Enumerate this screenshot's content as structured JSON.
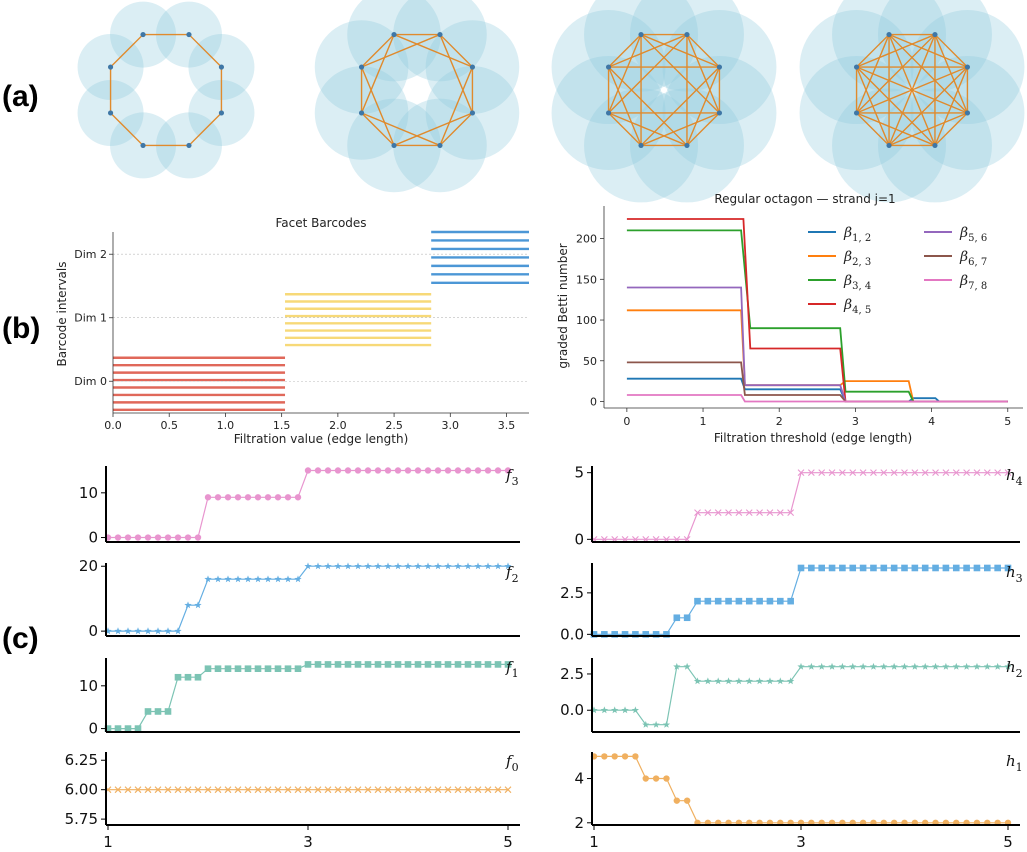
{
  "panel_labels": [
    "(a)",
    "(b)",
    "(c)"
  ],
  "colors": {
    "ball": "#8ec9dc",
    "edge": "#e08a2c",
    "node": "#3f77a6",
    "dim0": "#e0685a",
    "dim1": "#f7d978",
    "dim2": "#4c97d6",
    "f3": "#e895cf",
    "f2": "#64aee2",
    "f1": "#7cc4b4",
    "f0": "#f0b060",
    "h4": "#e895cf",
    "h3": "#64aee2",
    "h2": "#7cc4b4",
    "h1": "#f0b060"
  },
  "chart_data": [
    {
      "id": "octagon-complexes",
      "type": "diagram",
      "n_vertices": 8,
      "complexes": [
        {
          "radius_ratio": 0.55,
          "edge_skips": [
            1
          ]
        },
        {
          "radius_ratio": 0.78,
          "edge_skips": [
            1,
            2
          ]
        },
        {
          "radius_ratio": 0.95,
          "edge_skips": [
            1,
            2,
            3
          ]
        },
        {
          "radius_ratio": 0.95,
          "edge_skips": [
            1,
            2,
            3,
            4
          ]
        }
      ]
    },
    {
      "id": "facet-barcodes",
      "type": "barcode",
      "title": "Facet Barcodes",
      "xlabel": "Filtration value (edge length)",
      "ylabel": "Barcode intervals",
      "xlim": [
        0,
        3.7
      ],
      "xticks": [
        "0.0",
        "0.5",
        "1.0",
        "1.5",
        "2.0",
        "2.5",
        "3.0",
        "3.5"
      ],
      "ylim": [
        -0.5,
        2.35
      ],
      "dims": [
        {
          "label": "Dim 0",
          "start": 0.0,
          "end": 1.53,
          "count": 8,
          "y_low": -0.45,
          "y_high": 0.37
        },
        {
          "label": "Dim 1",
          "start": 1.53,
          "end": 2.83,
          "count": 8,
          "y_low": 0.57,
          "y_high": 1.37
        },
        {
          "label": "Dim 2",
          "start": 2.83,
          "end": 3.7,
          "count": 7,
          "y_low": 1.55,
          "y_high": 2.35
        }
      ]
    },
    {
      "id": "graded-betti",
      "type": "line",
      "title": "Regular octagon — strand j=1",
      "xlabel": "Filtration threshold (edge length)",
      "ylabel": "graded Betti number",
      "xlim": [
        -0.3,
        5.2
      ],
      "ylim": [
        -8,
        240
      ],
      "xticks": [
        0,
        1,
        2,
        3,
        4,
        5
      ],
      "yticks": [
        0,
        50,
        100,
        150,
        200
      ],
      "series": [
        {
          "name": "β",
          "sub": "1, 2",
          "color": "#1f77b4",
          "x": [
            0,
            1.5,
            1.55,
            1.62,
            2.8,
            2.87,
            3.7,
            3.76,
            4.05,
            4.1,
            5
          ],
          "y": [
            28,
            28,
            15,
            15,
            15,
            0,
            0,
            4,
            4,
            0,
            0
          ]
        },
        {
          "name": "β",
          "sub": "2, 3",
          "color": "#ff7f0e",
          "x": [
            0,
            1.5,
            1.55,
            1.62,
            2.8,
            2.87,
            3.7,
            3.76,
            5
          ],
          "y": [
            112,
            112,
            20,
            20,
            20,
            25,
            25,
            0,
            0
          ]
        },
        {
          "name": "β",
          "sub": "3, 4",
          "color": "#2ca02c",
          "x": [
            0,
            1.5,
            1.62,
            2.8,
            2.87,
            3.7,
            3.76,
            5
          ],
          "y": [
            210,
            210,
            90,
            90,
            12,
            12,
            0,
            0
          ]
        },
        {
          "name": "β",
          "sub": "4, 5",
          "color": "#d62728",
          "x": [
            0,
            1.53,
            1.62,
            2.8,
            2.87,
            5
          ],
          "y": [
            224,
            224,
            65,
            65,
            0,
            0
          ]
        },
        {
          "name": "β",
          "sub": "5, 6",
          "color": "#9467bd",
          "x": [
            0,
            1.5,
            1.55,
            1.62,
            2.8,
            2.87,
            5
          ],
          "y": [
            140,
            140,
            20,
            20,
            20,
            0,
            0
          ]
        },
        {
          "name": "β",
          "sub": "6, 7",
          "color": "#8c564b",
          "x": [
            0,
            1.5,
            1.55,
            1.62,
            2.8,
            2.87,
            5
          ],
          "y": [
            48,
            48,
            8,
            8,
            8,
            0,
            0
          ]
        },
        {
          "name": "β",
          "sub": "7, 8",
          "color": "#e377c2",
          "x": [
            0,
            1.5,
            1.55,
            5
          ],
          "y": [
            8,
            8,
            0,
            0
          ]
        }
      ]
    },
    {
      "id": "f-vectors-h-vectors",
      "type": "line",
      "xlim": [
        1,
        5
      ],
      "xticks": [
        "1",
        "3",
        "5"
      ],
      "n_points": 41,
      "panels": [
        {
          "key": "f3",
          "label": "f",
          "sub": "3",
          "marker": "circle",
          "ylim": [
            -1,
            16
          ],
          "yticks": [
            {
              "v": 0,
              "t": "0"
            },
            {
              "v": 10,
              "t": "10"
            }
          ],
          "steps": [
            [
              1.0,
              0
            ],
            [
              2.0,
              9
            ],
            [
              3.0,
              15
            ]
          ]
        },
        {
          "key": "f2",
          "label": "f",
          "sub": "2",
          "marker": "star",
          "ylim": [
            -1.5,
            21
          ],
          "yticks": [
            {
              "v": 0,
              "t": "0"
            },
            {
              "v": 20,
              "t": "20"
            }
          ],
          "steps": [
            [
              1.0,
              0
            ],
            [
              1.8,
              8
            ],
            [
              2.0,
              16
            ],
            [
              3.0,
              20
            ]
          ]
        },
        {
          "key": "f1",
          "label": "f",
          "sub": "1",
          "marker": "square",
          "ylim": [
            -0.8,
            16.5
          ],
          "yticks": [
            {
              "v": 0,
              "t": "0"
            },
            {
              "v": 10,
              "t": "10"
            }
          ],
          "steps": [
            [
              1.0,
              0
            ],
            [
              1.4,
              4
            ],
            [
              1.7,
              12
            ],
            [
              2.0,
              14
            ],
            [
              3.0,
              15
            ]
          ]
        },
        {
          "key": "f0",
          "label": "f",
          "sub": "0",
          "marker": "x",
          "ylim": [
            5.7,
            6.32
          ],
          "yticks": [
            {
              "v": 5.75,
              "t": "5.75"
            },
            {
              "v": 6.0,
              "t": "6.00"
            },
            {
              "v": 6.25,
              "t": "6.25"
            }
          ],
          "steps": [
            [
              1.0,
              6
            ]
          ]
        },
        {
          "key": "h4",
          "label": "h",
          "sub": "4",
          "marker": "x",
          "ylim": [
            -0.2,
            5.5
          ],
          "yticks": [
            {
              "v": 0,
              "t": "0"
            },
            {
              "v": 5,
              "t": "5"
            }
          ],
          "steps": [
            [
              1.0,
              0
            ],
            [
              2.0,
              2
            ],
            [
              3.0,
              5
            ]
          ]
        },
        {
          "key": "h3",
          "label": "h",
          "sub": "3",
          "marker": "square",
          "ylim": [
            -0.1,
            4.3
          ],
          "yticks": [
            {
              "v": 0,
              "t": "0.0"
            },
            {
              "v": 2.5,
              "t": "2.5"
            }
          ],
          "steps": [
            [
              1.0,
              0
            ],
            [
              1.8,
              1
            ],
            [
              2.0,
              2
            ],
            [
              3.0,
              4
            ]
          ]
        },
        {
          "key": "h2",
          "label": "h",
          "sub": "2",
          "marker": "star",
          "ylim": [
            -1.5,
            3.6
          ],
          "yticks": [
            {
              "v": 0,
              "t": "0.0"
            },
            {
              "v": 2.5,
              "t": "2.5"
            }
          ],
          "steps": [
            [
              1.0,
              0
            ],
            [
              1.5,
              -1
            ],
            [
              1.8,
              3
            ],
            [
              2.0,
              2
            ],
            [
              3.0,
              3
            ]
          ]
        },
        {
          "key": "h1",
          "label": "h",
          "sub": "1",
          "marker": "circle",
          "ylim": [
            1.9,
            5.2
          ],
          "yticks": [
            {
              "v": 2,
              "t": "2"
            },
            {
              "v": 4,
              "t": "4"
            }
          ],
          "steps": [
            [
              1.0,
              5
            ],
            [
              1.5,
              4
            ],
            [
              1.8,
              3
            ],
            [
              2.0,
              2
            ]
          ]
        }
      ]
    }
  ]
}
